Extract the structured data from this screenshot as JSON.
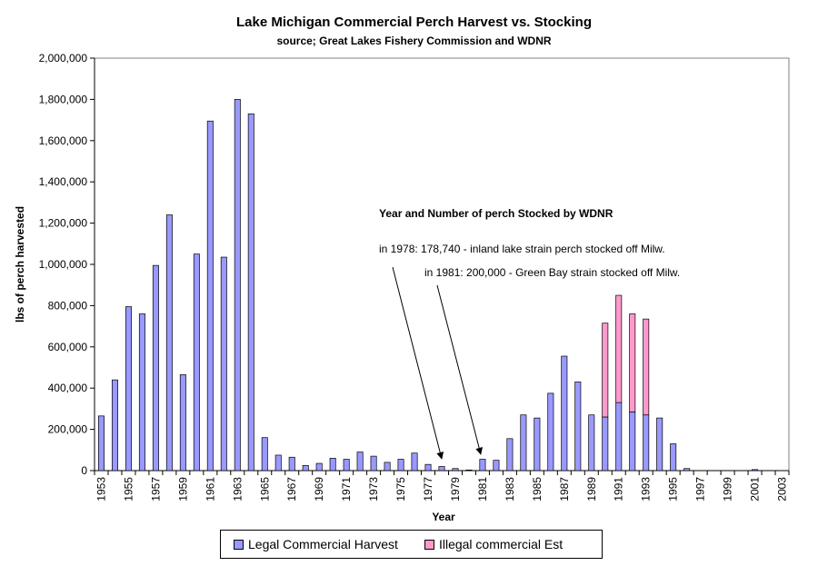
{
  "chart_data": {
    "type": "bar",
    "title": "Lake Michigan Commercial Perch Harvest vs. Stocking",
    "subtitle": "source;  Great Lakes Fishery Commission and WDNR",
    "xlabel": "Year",
    "ylabel": "lbs of perch harvested",
    "ylim": [
      0,
      2000000
    ],
    "yticks": [
      0,
      200000,
      400000,
      600000,
      800000,
      1000000,
      1200000,
      1400000,
      1600000,
      1800000,
      2000000
    ],
    "ytick_labels": [
      "0",
      "200,000",
      "400,000",
      "600,000",
      "800,000",
      "1,000,000",
      "1,200,000",
      "1,400,000",
      "1,600,000",
      "1,800,000",
      "2,000,000"
    ],
    "categories": [
      "1953",
      "1954",
      "1955",
      "1956",
      "1957",
      "1958",
      "1959",
      "1960",
      "1961",
      "1962",
      "1963",
      "1964",
      "1965",
      "1966",
      "1967",
      "1968",
      "1969",
      "1970",
      "1971",
      "1972",
      "1973",
      "1974",
      "1975",
      "1976",
      "1977",
      "1978",
      "1979",
      "1980",
      "1981",
      "1982",
      "1983",
      "1984",
      "1985",
      "1986",
      "1987",
      "1988",
      "1989",
      "1990",
      "1991",
      "1992",
      "1993",
      "1994",
      "1995",
      "1996",
      "1997",
      "1998",
      "1999",
      "2000",
      "2001",
      "2002",
      "2003"
    ],
    "xtick_labels": [
      "1953",
      "1955",
      "1957",
      "1959",
      "1961",
      "1963",
      "1965",
      "1967",
      "1969",
      "1971",
      "1973",
      "1975",
      "1977",
      "1979",
      "1981",
      "1983",
      "1985",
      "1987",
      "1989",
      "1991",
      "1993",
      "1995",
      "1997",
      "1999",
      "2001",
      "2003"
    ],
    "stacked": true,
    "series": [
      {
        "name": "Legal Commercial Harvest",
        "color": "#9999FF",
        "values": [
          265000,
          440000,
          795000,
          760000,
          995000,
          1240000,
          465000,
          1050000,
          1695000,
          1035000,
          1800000,
          1730000,
          160000,
          75000,
          65000,
          25000,
          35000,
          60000,
          55000,
          90000,
          70000,
          40000,
          55000,
          85000,
          30000,
          20000,
          10000,
          3000,
          55000,
          50000,
          155000,
          270000,
          255000,
          375000,
          555000,
          430000,
          270000,
          260000,
          330000,
          285000,
          270000,
          255000,
          130000,
          10000,
          0,
          0,
          0,
          0,
          5000,
          0,
          0
        ]
      },
      {
        "name": "Illegal commercial Est",
        "color": "#FF99CC",
        "values": [
          0,
          0,
          0,
          0,
          0,
          0,
          0,
          0,
          0,
          0,
          0,
          0,
          0,
          0,
          0,
          0,
          0,
          0,
          0,
          0,
          0,
          0,
          0,
          0,
          0,
          0,
          0,
          0,
          0,
          0,
          0,
          0,
          0,
          0,
          0,
          0,
          0,
          455000,
          520000,
          475000,
          465000,
          0,
          0,
          0,
          0,
          0,
          0,
          0,
          0,
          0,
          0
        ]
      }
    ],
    "annotations": {
      "heading": "Year and Number of perch Stocked by WDNR",
      "note_1978": "in 1978: 178,740 - inland lake strain  perch stocked off Milw.",
      "note_1981": "in 1981: 200,000 - Green Bay strain stocked off Milw.",
      "arrow_targets": [
        "1978",
        "1981"
      ]
    },
    "grid": false,
    "legend_position": "bottom"
  }
}
